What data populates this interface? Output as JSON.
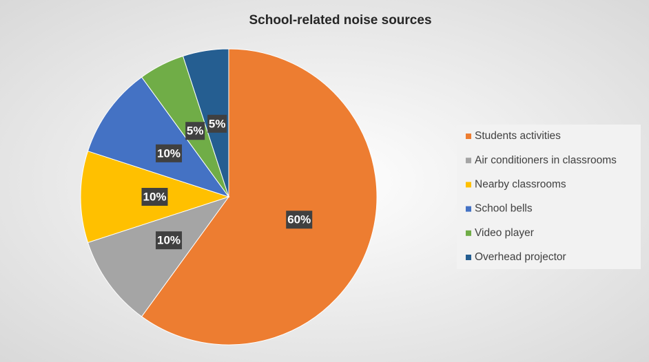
{
  "chart_data": {
    "type": "pie",
    "title": "School-related noise sources",
    "categories": [
      "Students activities",
      "Air conditioners in classrooms",
      "Nearby classrooms",
      "School bells",
      "Video player",
      "Overhead projector"
    ],
    "values": [
      60,
      10,
      10,
      10,
      5,
      5
    ],
    "value_labels": [
      "60%",
      "10%",
      "10%",
      "10%",
      "5%",
      "5%"
    ],
    "colors": [
      "#ed7d31",
      "#a5a5a5",
      "#ffc000",
      "#4472c4",
      "#70ad47",
      "#255e91"
    ],
    "legend": "right"
  }
}
